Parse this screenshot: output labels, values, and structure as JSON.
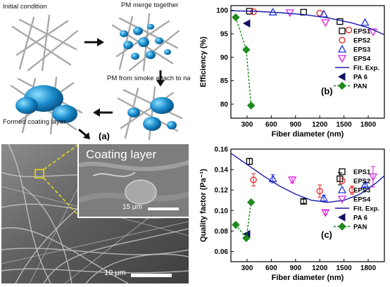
{
  "schematic": {
    "labels": {
      "initial": "Initial condition",
      "merge": "PM merge together",
      "attach": "PM from smoke attach to nanofiber",
      "formed": "Formed coating layer"
    },
    "panel_label": "(a)"
  },
  "sem": {
    "inset_title": "Coating layer",
    "inset_scale": "15 μm",
    "main_scale": "10 μm"
  },
  "chart_data": [
    {
      "type": "scatter",
      "panel_label": "(b)",
      "xlabel": "Fiber diameter (nm)",
      "ylabel": "Efficiency (%)",
      "xlim": [
        100,
        2000
      ],
      "ylim": [
        77,
        101
      ],
      "xticks": [
        300,
        600,
        900,
        1200,
        1500,
        1800
      ],
      "yticks": [
        80,
        85,
        90,
        95,
        100
      ],
      "legend_position": "right",
      "series": [
        {
          "name": "EPS1",
          "marker": "square",
          "color": "#000000",
          "x": [
            330,
            1000,
            1450
          ],
          "y": [
            99.8,
            99.6,
            97.6
          ]
        },
        {
          "name": "EPS2",
          "marker": "circle",
          "color": "#e02020",
          "x": [
            380,
            1200,
            1560
          ],
          "y": [
            99.7,
            99.4,
            95.8
          ]
        },
        {
          "name": "EPS3",
          "marker": "triangle-up",
          "color": "#2233dd",
          "x": [
            620,
            1250,
            1760
          ],
          "y": [
            99.6,
            99.2,
            97.4
          ]
        },
        {
          "name": "EPS4",
          "marker": "triangle-down",
          "color": "#dd22dd",
          "x": [
            830,
            1270,
            1860
          ],
          "y": [
            99.5,
            97.4,
            95.4
          ]
        },
        {
          "name": "Fit. Exp.",
          "marker": "line",
          "color": "#1a1aa8",
          "x": [
            100,
            400,
            700,
            1000,
            1300,
            1600,
            1800,
            2000
          ],
          "y": [
            99.9,
            99.8,
            99.5,
            99.1,
            98.4,
            97.3,
            96.3,
            94.8
          ]
        },
        {
          "name": "PA 6",
          "marker": "triangle-left",
          "color": "#101060",
          "x": [
            300
          ],
          "y": [
            97.2
          ]
        },
        {
          "name": "PAN",
          "marker": "diamond-dash",
          "color": "#1e8a1e",
          "x": [
            160,
            290,
            350
          ],
          "y": [
            98.5,
            91.6,
            79.7
          ]
        }
      ]
    },
    {
      "type": "scatter",
      "panel_label": "(c)",
      "xlabel": "Fiber diameter (nm)",
      "ylabel": "Quality factor (Pa⁻¹)",
      "xlim": [
        100,
        2000
      ],
      "ylim": [
        0.05,
        0.16
      ],
      "xticks": [
        300,
        600,
        900,
        1200,
        1500,
        1800
      ],
      "yticks": [
        0.06,
        0.08,
        0.1,
        0.12,
        0.14,
        0.16
      ],
      "legend_position": "right",
      "series": [
        {
          "name": "EPS1",
          "marker": "square",
          "color": "#000000",
          "x": [
            330,
            1000,
            1450
          ],
          "y": [
            0.148,
            0.109,
            0.131
          ],
          "err": [
            0.003,
            0.002,
            0.006
          ]
        },
        {
          "name": "EPS2",
          "marker": "circle",
          "color": "#e02020",
          "x": [
            380,
            1200,
            1600
          ],
          "y": [
            0.13,
            0.119,
            0.12
          ],
          "err": [
            0.006,
            0.006,
            0.004
          ]
        },
        {
          "name": "EPS3",
          "marker": "triangle-up",
          "color": "#2233dd",
          "x": [
            620,
            1250,
            1760
          ],
          "y": [
            0.131,
            0.112,
            0.125
          ],
          "err": [
            0.004,
            0.003,
            0.002
          ]
        },
        {
          "name": "EPS4",
          "marker": "triangle-down",
          "color": "#dd22dd",
          "x": [
            860,
            1270,
            1860
          ],
          "y": [
            0.13,
            0.098,
            0.133
          ],
          "err": [
            0.003,
            0.002,
            0.01
          ]
        },
        {
          "name": "Fit. Exp.",
          "marker": "line",
          "color": "#1a1aa8",
          "x": [
            100,
            300,
            500,
            700,
            900,
            1100,
            1300,
            1500,
            1700,
            1900,
            2000
          ],
          "y": [
            0.156,
            0.145,
            0.134,
            0.124,
            0.116,
            0.11,
            0.108,
            0.11,
            0.116,
            0.127,
            0.134
          ]
        },
        {
          "name": "PA 6",
          "marker": "triangle-left",
          "color": "#101060",
          "x": [
            300
          ],
          "y": [
            0.077
          ]
        },
        {
          "name": "PAN",
          "marker": "diamond-dash",
          "color": "#1e8a1e",
          "x": [
            160,
            290,
            350
          ],
          "y": [
            0.086,
            0.073,
            0.108
          ]
        }
      ]
    }
  ]
}
